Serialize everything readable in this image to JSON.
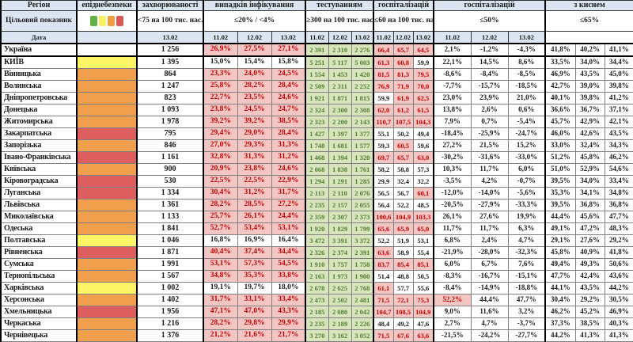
{
  "colors": {
    "header_bg": "#dbe5f1",
    "pink_bg": "#f4c6c3",
    "red_text": "#c00000",
    "green_bg": "#d8e4bc",
    "green_text": "#507e32",
    "epid": {
      "yellow": "#fcf666",
      "orange": "#f0a04c",
      "red": "#dd5e5e",
      "none": "#ffffff"
    },
    "legend": [
      "#62b146",
      "#f5ef62",
      "#f09d3e",
      "#d95757"
    ]
  },
  "thresholds": {
    "inf": 20,
    "h60": 60,
    "h50": 50,
    "oxy": 65
  },
  "header": {
    "col_region": "Регіон",
    "col_epid": "епіднебезпеки",
    "target_label": "Цільовий показник",
    "date_label": "Дата",
    "dates": [
      "11.02",
      "12.02",
      "13.02"
    ],
    "zahv_date": "13.02",
    "groups": [
      {
        "label": "захворюваності",
        "target": "<75 на 100 тис. нас."
      },
      {
        "label": "випадків інфікування",
        "target": "≤20% / <4%"
      },
      {
        "label": "тестуванням",
        "target": "≥300 на 100 тис. нас."
      },
      {
        "label": "госпіталізацій",
        "target": "≤60 на 100 тис. нас."
      },
      {
        "label": "госпіталізацій",
        "target": "≤50%"
      },
      {
        "label": "з киснем",
        "target": "≤65%"
      }
    ]
  },
  "rows": [
    {
      "region": "Україна",
      "bold": true,
      "epid": "none",
      "zahv": "1 256",
      "inf": [
        "26,9%",
        "27,5%",
        "27,1%"
      ],
      "test": [
        "2 391",
        "2 310",
        "2 276"
      ],
      "h60": [
        "66,4",
        "65,7",
        "64,5"
      ],
      "h50": [
        "2,1%",
        "-1,2%",
        "-4,3%"
      ],
      "oxy": [
        "41,8%",
        "40,2%",
        "41,1%"
      ]
    },
    {
      "region": "КИЇВ",
      "bold": false,
      "epid": "yellow",
      "zahv": "1 395",
      "inf": [
        "15,0%",
        "15,4%",
        "15,8%"
      ],
      "test": [
        "5 251",
        "5 117",
        "5 003"
      ],
      "h60": [
        "61,3",
        "60,8",
        "59,9"
      ],
      "h50": [
        "22,1%",
        "14,5%",
        "8,6%"
      ],
      "oxy": [
        "33,5%",
        "34,0%",
        "34,4%"
      ]
    },
    {
      "region": "Вінницька",
      "bold": false,
      "epid": "orange",
      "zahv": "864",
      "inf": [
        "23,3%",
        "24,0%",
        "24,5%"
      ],
      "test": [
        "1 554",
        "1 453",
        "1 420"
      ],
      "h60": [
        "81,5",
        "81,3",
        "79,5"
      ],
      "h50": [
        "-8,6%",
        "-8,4%",
        "-8,5%"
      ],
      "oxy": [
        "46,9%",
        "43,5%",
        "45,0%"
      ]
    },
    {
      "region": "Волинська",
      "bold": false,
      "epid": "orange",
      "zahv": "1 247",
      "inf": [
        "25,8%",
        "28,2%",
        "28,4%"
      ],
      "test": [
        "2 509",
        "2 311",
        "2 252"
      ],
      "h60": [
        "76,9",
        "71,9",
        "70,0"
      ],
      "h50": [
        "-7,7%",
        "-15,7%",
        "-18,5%"
      ],
      "oxy": [
        "42,7%",
        "39,0%",
        "39,8%"
      ]
    },
    {
      "region": "Дніпропетровська",
      "bold": false,
      "epid": "orange",
      "zahv": "823",
      "inf": [
        "22,7%",
        "23,5%",
        "24,6%"
      ],
      "test": [
        "1 921",
        "1 871",
        "1 815"
      ],
      "h60": [
        "59,9",
        "61,9",
        "62,5"
      ],
      "h50": [
        "23,0%",
        "23,9%",
        "21,0%"
      ],
      "oxy": [
        "40,1%",
        "39,8%",
        "41,2%"
      ]
    },
    {
      "region": "Донецька",
      "bold": false,
      "epid": "orange",
      "zahv": "1 093",
      "inf": [
        "23,8%",
        "24,5%",
        "24,7%"
      ],
      "test": [
        "2 324",
        "2 300",
        "2 308"
      ],
      "h60": [
        "62,0",
        "61,2",
        "61,5"
      ],
      "h50": [
        "13,8%",
        "2,6%",
        "0,6%"
      ],
      "oxy": [
        "36,6%",
        "36,7%",
        "37,1%"
      ]
    },
    {
      "region": "Житомирська",
      "bold": false,
      "epid": "orange",
      "zahv": "1 978",
      "inf": [
        "39,2%",
        "39,2%",
        "38,5%"
      ],
      "test": [
        "2 323",
        "2 200",
        "2 143"
      ],
      "h60": [
        "110,7",
        "107,5",
        "104,3"
      ],
      "h50": [
        "7,9%",
        "0,7%",
        "-5,4%"
      ],
      "oxy": [
        "45,7%",
        "42,9%",
        "42,1%"
      ]
    },
    {
      "region": "Закарпатська",
      "bold": false,
      "epid": "red",
      "zahv": "795",
      "inf": [
        "29,4%",
        "29,0%",
        "28,4%"
      ],
      "test": [
        "1 427",
        "1 397",
        "1 377"
      ],
      "h60": [
        "55,1",
        "50,2",
        "49,4"
      ],
      "h50": [
        "-18,4%",
        "-25,9%",
        "-24,7%"
      ],
      "oxy": [
        "46,0%",
        "42,6%",
        "43,5%"
      ]
    },
    {
      "region": "Запорізька",
      "bold": false,
      "epid": "orange",
      "zahv": "846",
      "inf": [
        "27,0%",
        "29,3%",
        "31,3%"
      ],
      "test": [
        "1 748",
        "1 681",
        "1 577"
      ],
      "h60": [
        "59,3",
        "60,5",
        "59,6"
      ],
      "h50": [
        "27,2%",
        "21,5%",
        "15,2%"
      ],
      "oxy": [
        "33,0%",
        "32,4%",
        "34,3%"
      ]
    },
    {
      "region": "Івано-Франківська",
      "bold": false,
      "epid": "red",
      "zahv": "1 161",
      "inf": [
        "32,8%",
        "31,3%",
        "31,2%"
      ],
      "test": [
        "1 468",
        "1 394",
        "1 320"
      ],
      "h60": [
        "69,7",
        "65,7",
        "63,0"
      ],
      "h50": [
        "-30,2%",
        "-31,6%",
        "-33,0%"
      ],
      "oxy": [
        "51,2%",
        "45,8%",
        "46,2%"
      ]
    },
    {
      "region": "Київська",
      "bold": false,
      "epid": "orange",
      "zahv": "900",
      "inf": [
        "20,9%",
        "23,8%",
        "24,6%"
      ],
      "test": [
        "2 068",
        "1 838",
        "1 761"
      ],
      "h60": [
        "58,2",
        "58,8",
        "57,3"
      ],
      "h50": [
        "10,3%",
        "11,7%",
        "6,0%"
      ],
      "oxy": [
        "51,0%",
        "52,9%",
        "54,6%"
      ]
    },
    {
      "region": "Кіровоградська",
      "bold": false,
      "epid": "red",
      "zahv": "530",
      "inf": [
        "22,5%",
        "22,5%",
        "22,9%"
      ],
      "test": [
        "1 294",
        "1 291",
        "1 285"
      ],
      "h60": [
        "29,9",
        "32,4",
        "32,2"
      ],
      "h50": [
        "-3,5%",
        "4,2%",
        "-0,7%"
      ],
      "oxy": [
        "39,5%",
        "34,0%",
        "33,4%"
      ]
    },
    {
      "region": "Луганська",
      "bold": false,
      "epid": "red",
      "zahv": "1 334",
      "inf": [
        "30,4%",
        "31,2%",
        "31,7%"
      ],
      "test": [
        "2 113",
        "2 110",
        "2 076"
      ],
      "h60": [
        "56,5",
        "56,7",
        "60,1"
      ],
      "h50": [
        "-12,0%",
        "-14,0%",
        "-5,6%"
      ],
      "oxy": [
        "35,3%",
        "34,1%",
        "34,8%"
      ]
    },
    {
      "region": "Львівська",
      "bold": false,
      "epid": "orange",
      "zahv": "1 361",
      "inf": [
        "28,2%",
        "28,5%",
        "27,2%"
      ],
      "test": [
        "2 235",
        "2 157",
        "2 055"
      ],
      "h60": [
        "56,4",
        "52,2",
        "48,5"
      ],
      "h50": [
        "-20,5%",
        "-27,9%",
        "-33,3%"
      ],
      "oxy": [
        "39,5%",
        "36,8%",
        "36,8%"
      ]
    },
    {
      "region": "Миколаївська",
      "bold": false,
      "epid": "orange",
      "zahv": "1 133",
      "inf": [
        "25,7%",
        "26,1%",
        "24,4%"
      ],
      "test": [
        "2 359",
        "2 307",
        "2 373"
      ],
      "h60": [
        "100,6",
        "104,9",
        "103,3"
      ],
      "h50": [
        "26,1%",
        "27,6%",
        "19,9%"
      ],
      "oxy": [
        "44,4%",
        "45,6%",
        "47,7%"
      ]
    },
    {
      "region": "Одеська",
      "bold": false,
      "epid": "orange",
      "zahv": "1 841",
      "inf": [
        "52,7%",
        "53,4%",
        "53,1%"
      ],
      "test": [
        "1 920",
        "1 829",
        "1 799"
      ],
      "h60": [
        "65,6",
        "65,9",
        "65,0"
      ],
      "h50": [
        "11,7%",
        "11,7%",
        "6,3%"
      ],
      "oxy": [
        "49,1%",
        "47,2%",
        "48,3%"
      ]
    },
    {
      "region": "Полтавська",
      "bold": false,
      "epid": "yellow",
      "zahv": "1 046",
      "inf": [
        "16,8%",
        "16,9%",
        "16,4%"
      ],
      "test": [
        "3 472",
        "3 391",
        "3 372"
      ],
      "h60": [
        "52,2",
        "51,9",
        "53,1"
      ],
      "h50": [
        "6,8%",
        "2,4%",
        "4,7%"
      ],
      "oxy": [
        "29,1%",
        "27,6%",
        "29,2%"
      ]
    },
    {
      "region": "Рівненська",
      "bold": false,
      "epid": "red",
      "zahv": "1 871",
      "inf": [
        "40,4%",
        "37,4%",
        "34,4%"
      ],
      "test": [
        "2 326",
        "2 374",
        "2 391"
      ],
      "h60": [
        "63,6",
        "58,9",
        "55,4"
      ],
      "h50": [
        "-21,9%",
        "-28,0%",
        "-32,3%"
      ],
      "oxy": [
        "45,8%",
        "40,9%",
        "41,8%"
      ]
    },
    {
      "region": "Сумська",
      "bold": false,
      "epid": "orange",
      "zahv": "1 991",
      "inf": [
        "53,1%",
        "57,3%",
        "54,5%"
      ],
      "test": [
        "1 910",
        "1 757",
        "1 758"
      ],
      "h60": [
        "83,7",
        "85,4",
        "85,1"
      ],
      "h50": [
        "6,0%",
        "6,7%",
        "7,6%"
      ],
      "oxy": [
        "49,4%",
        "49,3%",
        "50,6%"
      ]
    },
    {
      "region": "Тернопільська",
      "bold": false,
      "epid": "orange",
      "zahv": "1 567",
      "inf": [
        "34,8%",
        "35,3%",
        "33,8%"
      ],
      "test": [
        "2 163",
        "1 973",
        "1 900"
      ],
      "h60": [
        "51,4",
        "48,8",
        "50,5"
      ],
      "h50": [
        "-8,3%",
        "-16,7%",
        "-15,1%"
      ],
      "oxy": [
        "47,7%",
        "42,4%",
        "43,6%"
      ]
    },
    {
      "region": "Харківська",
      "bold": false,
      "epid": "yellow",
      "zahv": "1 002",
      "inf": [
        "19,1%",
        "19,7%",
        "18,0%"
      ],
      "test": [
        "2 678",
        "2 625",
        "2 768"
      ],
      "h60": [
        "61,1",
        "57,7",
        "55,6"
      ],
      "h50": [
        "-8,4%",
        "-14,9%",
        "-18,8%"
      ],
      "oxy": [
        "44,1%",
        "43,5%",
        "44,2%"
      ]
    },
    {
      "region": "Херсонська",
      "bold": false,
      "epid": "orange",
      "zahv": "1 402",
      "inf": [
        "31,7%",
        "33,1%",
        "33,4%"
      ],
      "test": [
        "2 473",
        "2 502",
        "2 481"
      ],
      "h60": [
        "71,5",
        "72,1",
        "75,3"
      ],
      "h50": [
        "52,2%",
        "44,4%",
        "47,7%"
      ],
      "oxy": [
        "30,4%",
        "29,2%",
        "30,5%"
      ]
    },
    {
      "region": "Хмельницька",
      "bold": false,
      "epid": "red",
      "zahv": "1 956",
      "inf": [
        "47,1%",
        "47,0%",
        "43,3%"
      ],
      "test": [
        "2 185",
        "2 080",
        "2 042"
      ],
      "h60": [
        "104,7",
        "108,5",
        "104,9"
      ],
      "h50": [
        "9,0%",
        "11,6%",
        "3,2%"
      ],
      "oxy": [
        "46,2%",
        "45,2%",
        "46,9%"
      ]
    },
    {
      "region": "Черкаська",
      "bold": false,
      "epid": "orange",
      "zahv": "1 216",
      "inf": [
        "28,2%",
        "29,8%",
        "29,9%"
      ],
      "test": [
        "2 235",
        "2 189",
        "2 226"
      ],
      "h60": [
        "48,4",
        "49,2",
        "47,6"
      ],
      "h50": [
        "2,7%",
        "4,7%",
        "-3,7%"
      ],
      "oxy": [
        "37,3%",
        "38,5%",
        "40,3%"
      ]
    },
    {
      "region": "Чернівецька",
      "bold": false,
      "epid": "orange",
      "zahv": "1 376",
      "inf": [
        "21,2%",
        "21,6%",
        "21,7%"
      ],
      "test": [
        "3 270",
        "3 162",
        "3 052"
      ],
      "h60": [
        "71,5",
        "67,6",
        "63,6"
      ],
      "h50": [
        "-21,5%",
        "-24,2%",
        "-27,7%"
      ],
      "oxy": [
        "44,2%",
        "41,3%",
        "41,3%"
      ]
    }
  ]
}
